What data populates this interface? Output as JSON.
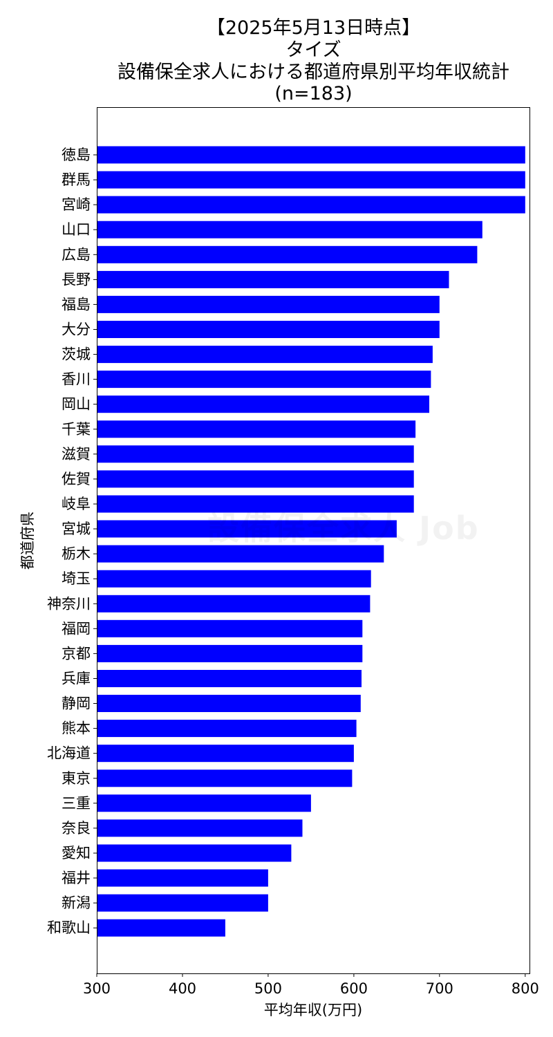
{
  "chart_data": {
    "type": "bar",
    "orientation": "horizontal",
    "title_lines": [
      "【2025年5月13日時点】",
      "タイズ",
      "設備保全求人における都道府県別平均年収統計",
      "(n=183)"
    ],
    "xlabel": "平均年収(万円)",
    "ylabel": "都道府県",
    "xlim": [
      300,
      805
    ],
    "xticks": [
      300,
      400,
      500,
      600,
      700,
      800
    ],
    "grid": false,
    "bar_color": "#0000ff",
    "categories": [
      "徳島",
      "群馬",
      "宮崎",
      "山口",
      "広島",
      "長野",
      "福島",
      "大分",
      "茨城",
      "香川",
      "岡山",
      "千葉",
      "滋賀",
      "佐賀",
      "岐阜",
      "宮城",
      "栃木",
      "埼玉",
      "神奈川",
      "福岡",
      "京都",
      "兵庫",
      "静岡",
      "熊本",
      "北海道",
      "東京",
      "三重",
      "奈良",
      "愛知",
      "福井",
      "新潟",
      "和歌山"
    ],
    "values": [
      800,
      800,
      800,
      750,
      744,
      711,
      700,
      700,
      692,
      690,
      688,
      672,
      670,
      670,
      670,
      650,
      635,
      620,
      619,
      610,
      610,
      609,
      608,
      603,
      600,
      598,
      550,
      540,
      527,
      500,
      500,
      450
    ]
  },
  "watermark": "設備保全求人 Job"
}
